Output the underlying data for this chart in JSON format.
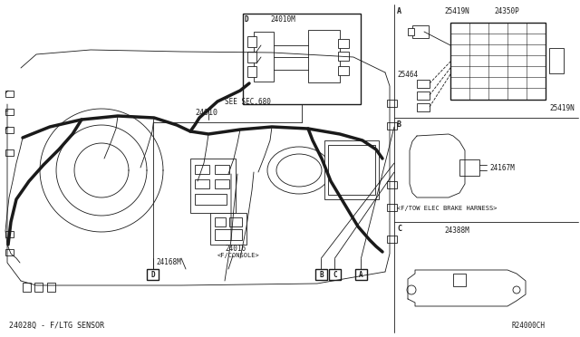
{
  "bg_color": "#ffffff",
  "line_color": "#1a1a1a",
  "thin_lw": 0.6,
  "medium_lw": 1.0,
  "thick_lw": 2.5,
  "fig_width": 6.4,
  "fig_height": 3.72,
  "dpi": 100,
  "labels": {
    "main_part": "24010",
    "see_sec": "SEE SEC.680",
    "part_d_inset": "24010M",
    "part_b_label": "24168M",
    "bottom_note": "24028Q - F/LTG SENSOR",
    "part_a_label1": "25419N",
    "part_a_label2": "24350P",
    "part_a_label3": "25464",
    "part_a_label4": "25419N",
    "part_b_label2": "24167M",
    "part_b_text": "<F/TOW ELEC BRAKE HARNESS>",
    "part_c_label": "24388M",
    "watermark": "R24000CH",
    "console_label": "24016",
    "console_sub": "<F/CONSOLE>",
    "section_a": "A",
    "section_b": "B",
    "section_c": "C",
    "section_d": "D",
    "box_a": "A",
    "box_b": "B",
    "box_c": "C",
    "box_d": "D"
  }
}
